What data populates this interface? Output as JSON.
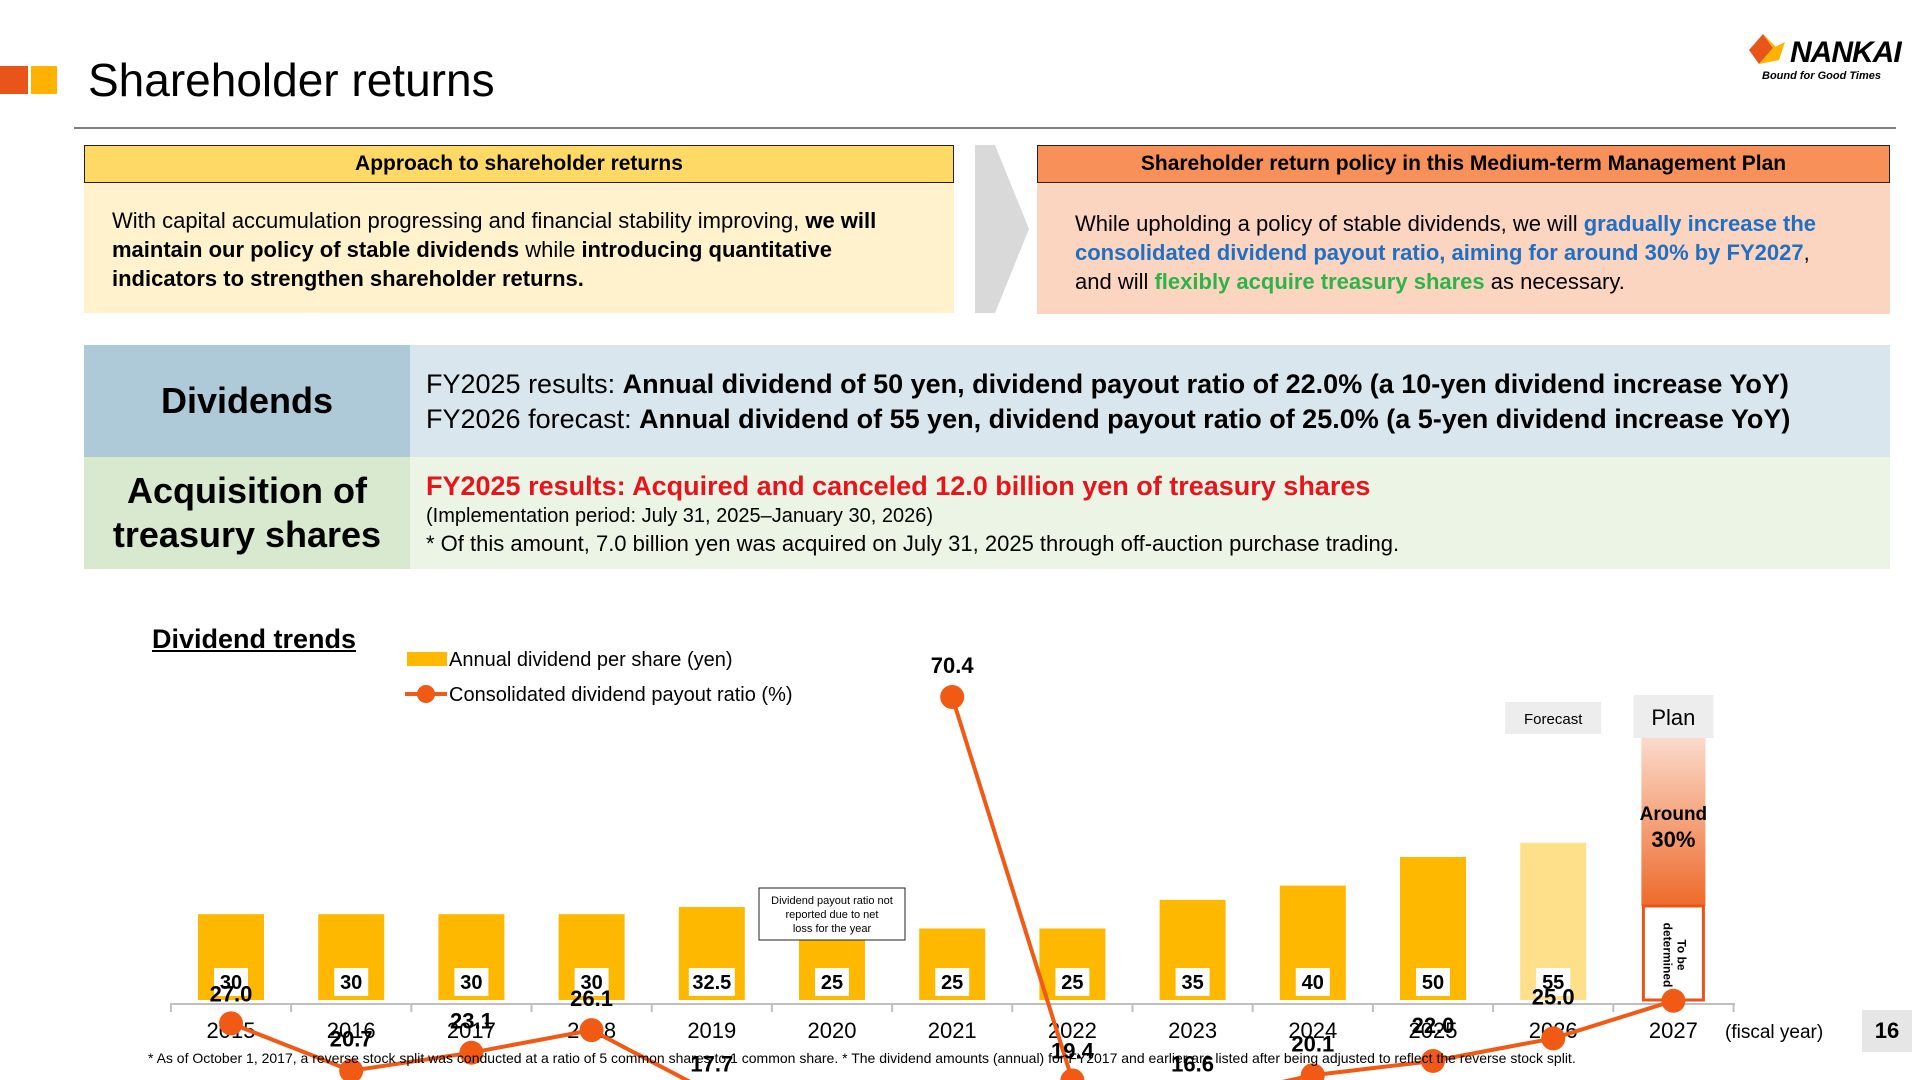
{
  "header": {
    "title": "Shareholder returns",
    "logo_word": "NANKAI",
    "logo_tagline": "Bound for Good Times"
  },
  "approach": {
    "heading": "Approach to shareholder returns",
    "t1": "With capital accumulation progressing and financial stability improving, ",
    "t2": "we will maintain our policy of stable dividends",
    "t3": " while ",
    "t4": "introducing quantitative indicators to strengthen shareholder returns."
  },
  "policy": {
    "heading": "Shareholder return policy in this Medium-term Management Plan",
    "t1": "While upholding a policy of stable dividends, we will ",
    "t2": "gradually increase the consolidated dividend payout ratio, aiming for around 30% by FY2027",
    "t3": ", and will ",
    "t4": "flexibly acquire treasury shares",
    "t5": " as necessary."
  },
  "dividends": {
    "label": "Dividends",
    "r1_prefix": "FY2025 results: ",
    "r1_bold": "Annual dividend of 50 yen, dividend payout ratio of 22.0% (a 10-yen dividend increase YoY)",
    "r2_prefix": "FY2026 forecast: ",
    "r2_bold": "Annual dividend of 55 yen, dividend payout ratio of 25.0% (a 5-yen dividend increase YoY)"
  },
  "acquisition": {
    "label": "Acquisition of treasury shares",
    "line1": "FY2025 results: Acquired and canceled 12.0 billion yen of treasury shares",
    "line2": "(Implementation period: July 31, 2025–January 30, 2026)",
    "line3": "* Of this amount, 7.0 billion yen was acquired on July 31, 2025 through off-auction purchase trading."
  },
  "chart_data": {
    "type": "bar",
    "title": "Dividend trends",
    "xlabel": "(fiscal year)",
    "categories": [
      "2015",
      "2016",
      "2017",
      "2018",
      "2019",
      "2020",
      "2021",
      "2022",
      "2023",
      "2024",
      "2025",
      "2026",
      "2027"
    ],
    "series": [
      {
        "name": "Annual dividend per share (yen)",
        "type": "bar",
        "values": [
          30,
          30,
          30,
          30,
          32.5,
          25,
          25,
          25,
          35,
          40,
          50,
          55,
          null
        ],
        "labels": [
          "30",
          "30",
          "30",
          "30",
          "32.5",
          "25",
          "25",
          "25",
          "35",
          "40",
          "50",
          "55",
          ""
        ]
      },
      {
        "name": "Consolidated dividend payout ratio (%)",
        "type": "line",
        "values": [
          27.0,
          20.7,
          23.1,
          26.1,
          17.7,
          null,
          70.4,
          19.4,
          16.6,
          20.1,
          22.0,
          25.0,
          30
        ],
        "labels": [
          "27.0",
          "20.7",
          "23.1",
          "26.1",
          "17.7",
          "",
          "70.4",
          "19.4",
          "16.6",
          "20.1",
          "22.0",
          "25.0",
          ""
        ]
      }
    ],
    "annotations": {
      "no_ratio_2020": "Dividend payout ratio not reported due to net loss for the year",
      "forecast_2026": "Forecast",
      "plan_2027": "Plan",
      "around_2027_a": "Around",
      "around_2027_b": "30%",
      "tbd_2027": "To be determined"
    },
    "colors": {
      "bar": "#FFB800",
      "bar_forecast": "#FFE08A",
      "line": "#F05A14",
      "plan_box": "#E8541A"
    }
  },
  "footnote": "*  As of October 1, 2017, a reverse stock split was conducted at a ratio of 5 common shares to 1 common share. * The dividend amounts (annual) for FY2017 and earlier are listed after being adjusted to reflect the reverse stock split.",
  "page_number": "16"
}
